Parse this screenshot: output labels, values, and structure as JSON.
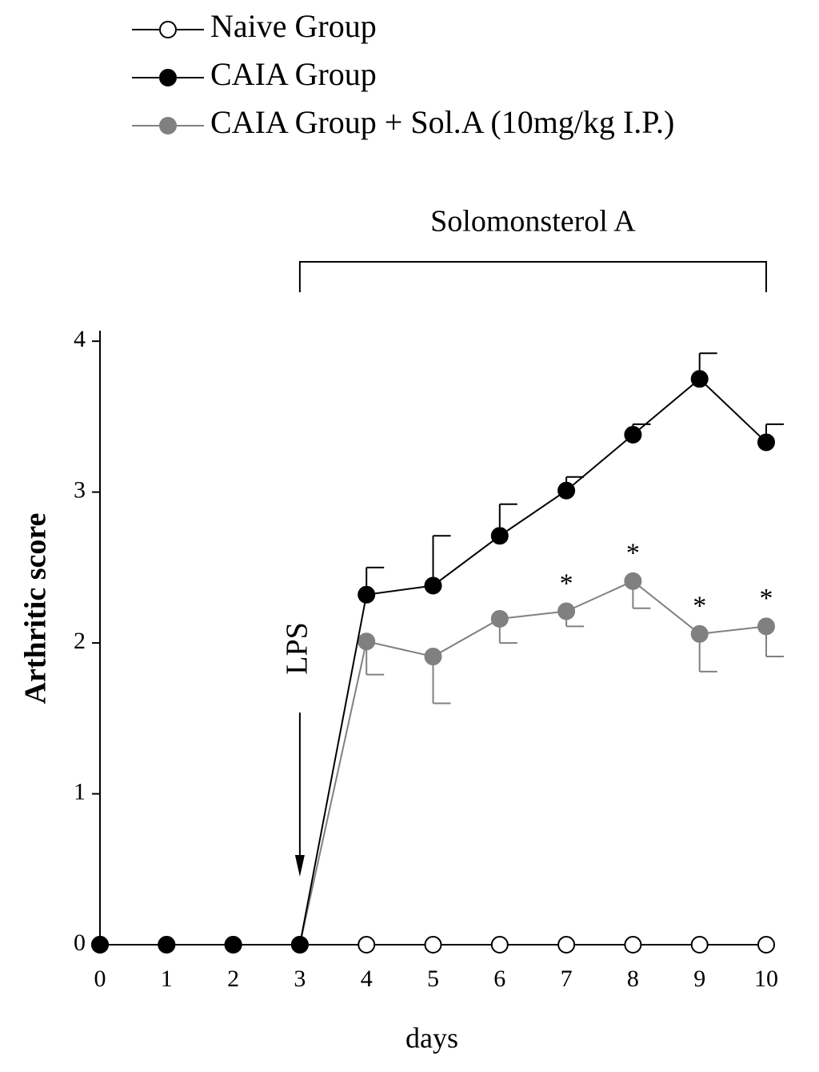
{
  "chart_data": {
    "type": "line",
    "x_label": "days",
    "y_label": "Arthritic score",
    "x": [
      0,
      1,
      2,
      3,
      4,
      5,
      6,
      7,
      8,
      9,
      10
    ],
    "xlim": [
      0,
      10
    ],
    "xticks": [
      0,
      1,
      2,
      3,
      4,
      5,
      6,
      7,
      8,
      9,
      10
    ],
    "ylim": [
      0,
      4.07
    ],
    "yticks": [
      0,
      1,
      2,
      3,
      4
    ],
    "series": [
      {
        "name": "Naive Group",
        "color": "#000000",
        "marker_fill": "#ffffff",
        "values": [
          0,
          0,
          0,
          0,
          0,
          0,
          0,
          0,
          0,
          0,
          0
        ]
      },
      {
        "name": "CAIA Group",
        "color": "#000000",
        "marker_fill": "#000000",
        "error_side": "up",
        "values": [
          0,
          0,
          0,
          0,
          2.32,
          2.38,
          2.71,
          3.01,
          3.38,
          3.75,
          3.33
        ],
        "errors": [
          null,
          null,
          null,
          null,
          0.18,
          0.33,
          0.21,
          0.09,
          0.07,
          0.17,
          0.12
        ]
      },
      {
        "name": "CAIA Group + Sol.A (10mg/kg I.P.)",
        "color": "#808080",
        "marker_fill": "#808080",
        "error_side": "down",
        "values": [
          0,
          0,
          0,
          0,
          2.01,
          1.91,
          2.16,
          2.21,
          2.41,
          2.06,
          2.11
        ],
        "errors": [
          null,
          null,
          null,
          null,
          0.22,
          0.31,
          0.16,
          0.1,
          0.18,
          0.25,
          0.2
        ]
      }
    ],
    "significance": [
      {
        "text": "*",
        "x": 7
      },
      {
        "text": "*",
        "x": 8
      },
      {
        "text": "*",
        "x": 9
      },
      {
        "text": "*",
        "x": 10
      }
    ],
    "treatment": {
      "text": "Solomonsterol A",
      "x": [
        3,
        10
      ]
    },
    "injection": {
      "text": "LPS",
      "x": 3
    }
  }
}
